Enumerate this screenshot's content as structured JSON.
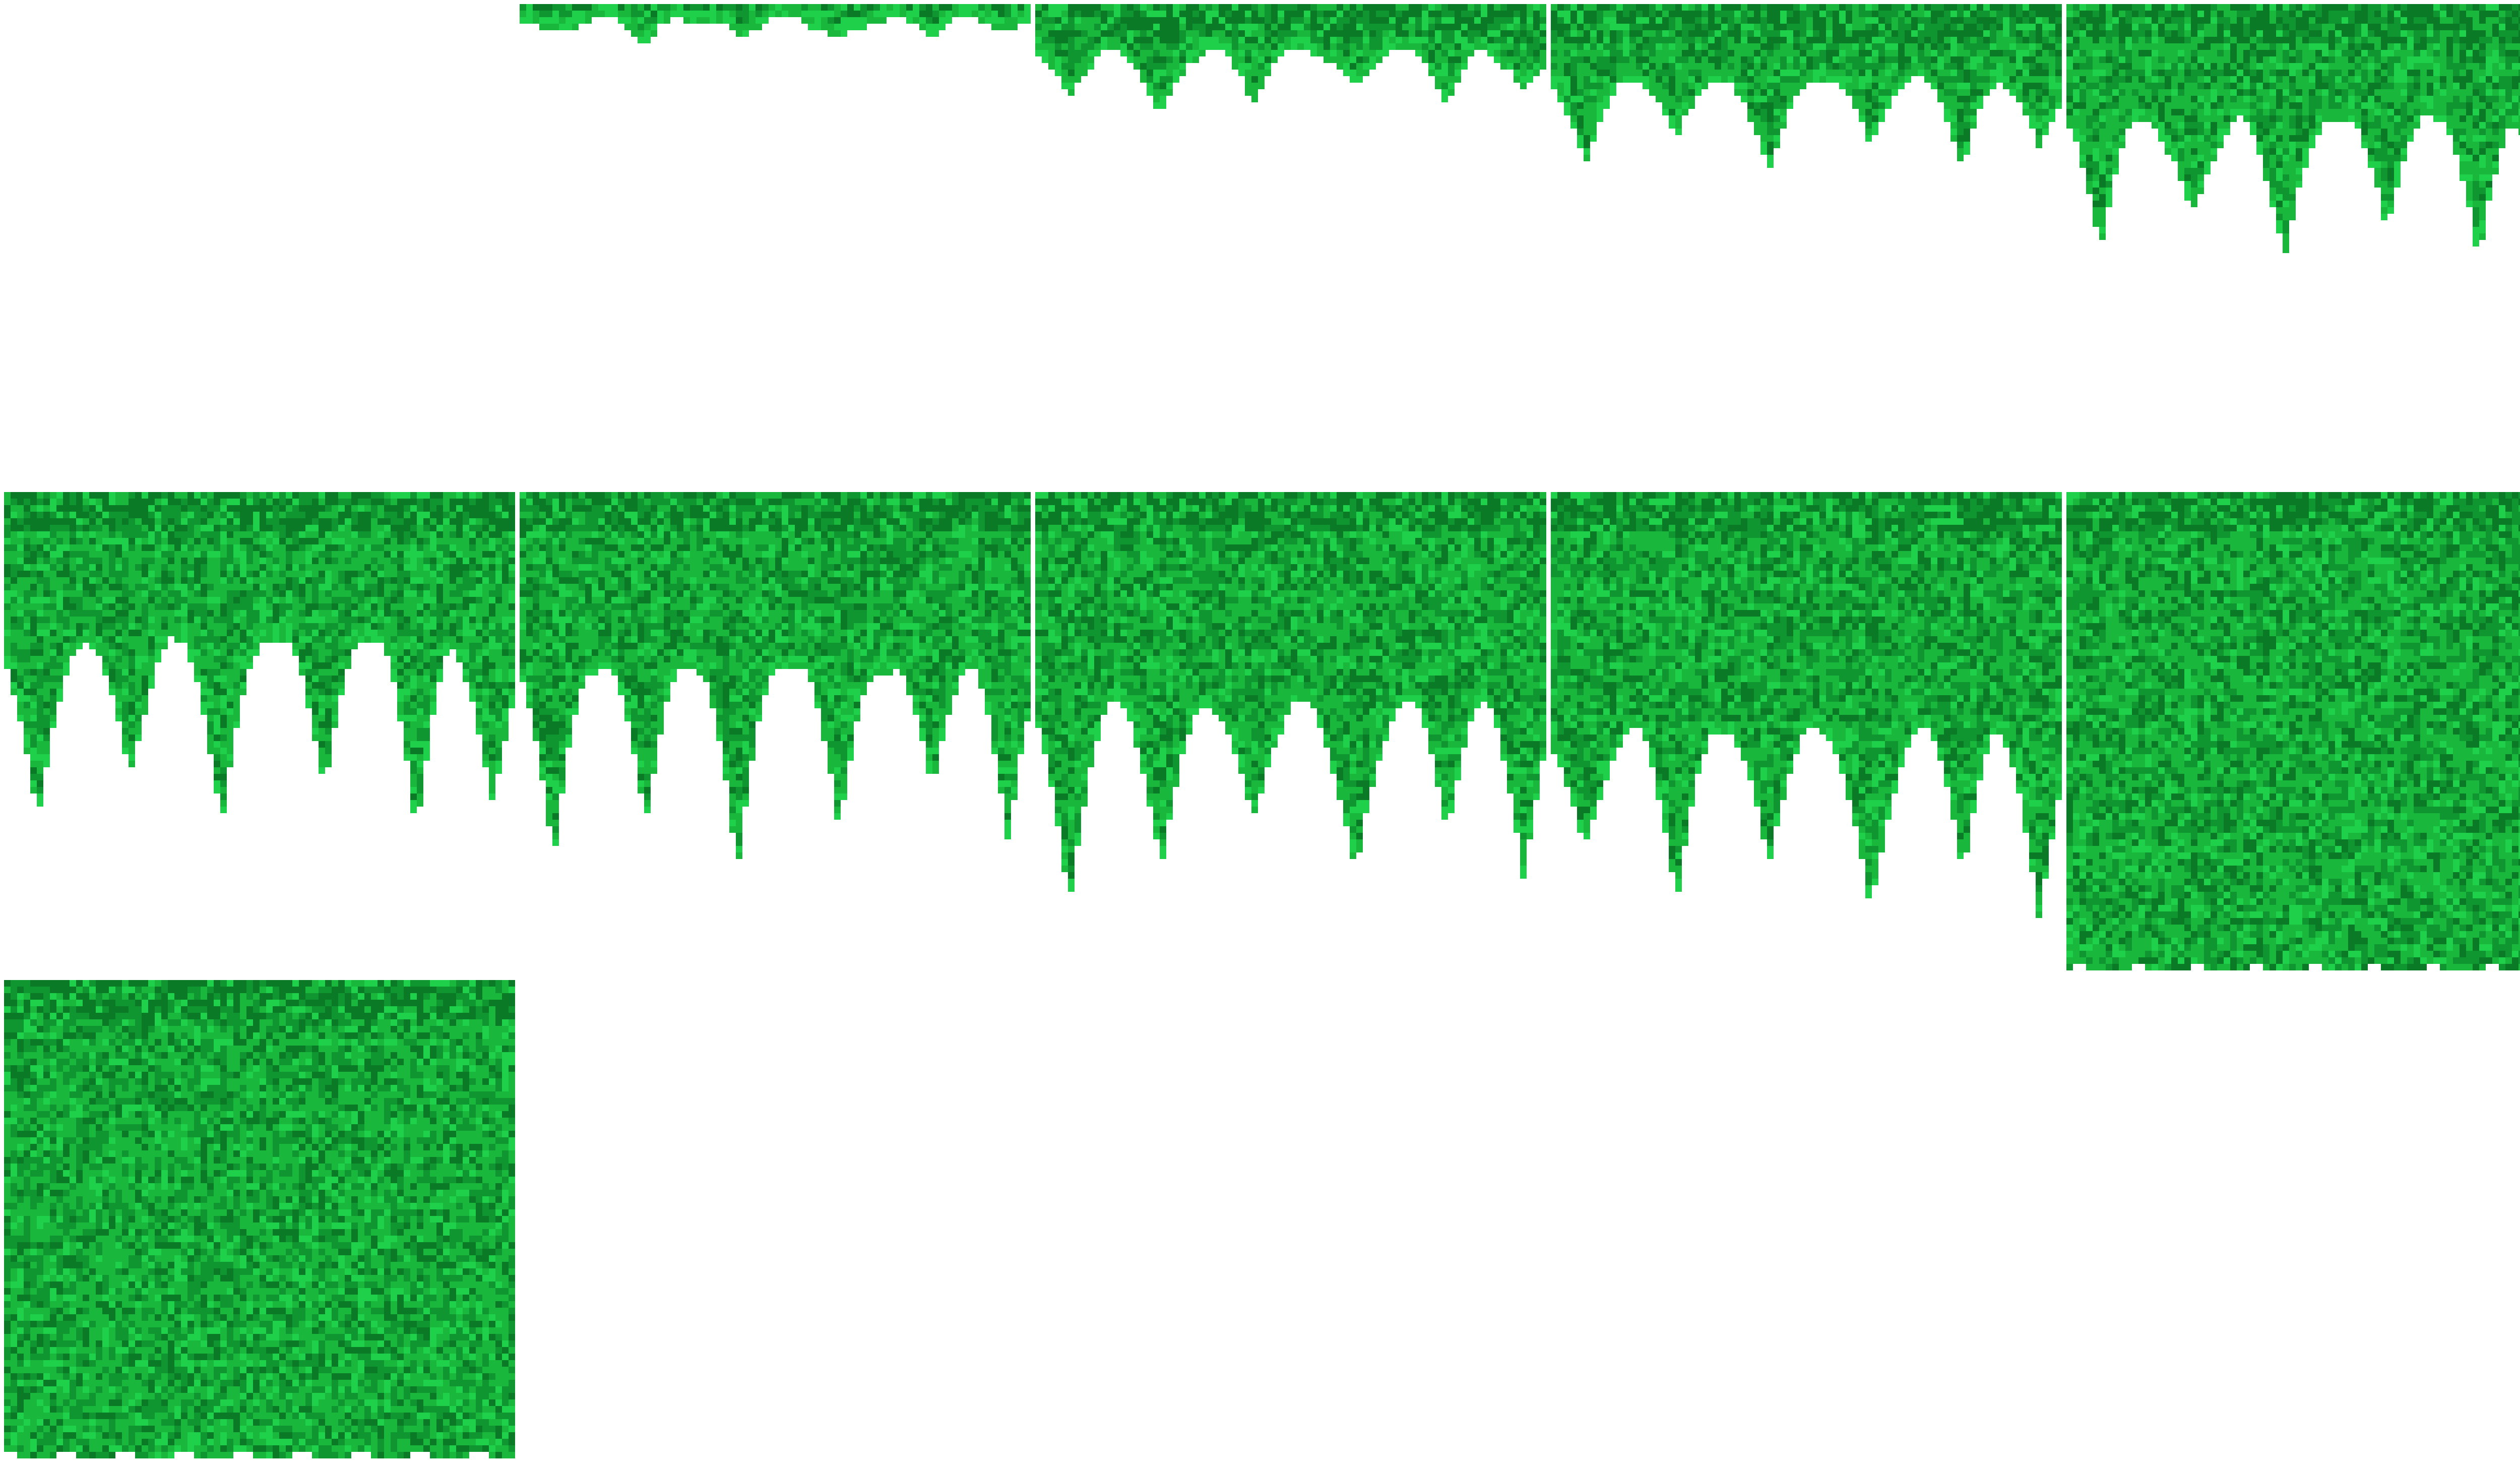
{
  "sprite_sheet": {
    "background_color": "#ffffff",
    "palette": {
      "light": "#1fd04a",
      "base": "#19b83d",
      "dark": "#0f9630",
      "darker": "#0b7a26"
    },
    "frames": [
      {
        "index": 1,
        "fill": 0.0
      },
      {
        "index": 2,
        "fill": 0.07
      },
      {
        "index": 3,
        "fill": 0.19
      },
      {
        "index": 4,
        "fill": 0.3
      },
      {
        "index": 5,
        "fill": 0.45
      },
      {
        "index": 6,
        "fill": 0.58
      },
      {
        "index": 7,
        "fill": 0.69
      },
      {
        "index": 8,
        "fill": 0.81
      },
      {
        "index": 9,
        "fill": 0.92
      },
      {
        "index": 10,
        "fill": 1.0
      },
      {
        "index": 11,
        "fill": 1.0
      }
    ]
  }
}
